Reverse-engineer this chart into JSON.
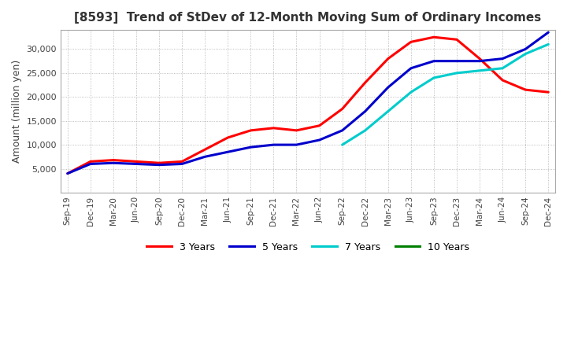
{
  "title": "[8593]  Trend of StDev of 12-Month Moving Sum of Ordinary Incomes",
  "ylabel": "Amount (million yen)",
  "ylim": [
    0,
    34000
  ],
  "yticks": [
    5000,
    10000,
    15000,
    20000,
    25000,
    30000
  ],
  "background_color": "#ffffff",
  "grid_color": "#aaaaaa",
  "x_labels": [
    "Sep-19",
    "Dec-19",
    "Mar-20",
    "Jun-20",
    "Sep-20",
    "Dec-20",
    "Mar-21",
    "Jun-21",
    "Sep-21",
    "Dec-21",
    "Mar-22",
    "Jun-22",
    "Sep-22",
    "Dec-22",
    "Mar-23",
    "Jun-23",
    "Sep-23",
    "Dec-23",
    "Mar-24",
    "Jun-24",
    "Sep-24",
    "Dec-24"
  ],
  "series": {
    "3 Years": {
      "color": "#ff0000",
      "values": [
        4000,
        6500,
        6800,
        6500,
        6200,
        6500,
        9000,
        11500,
        13000,
        13500,
        13000,
        14000,
        17500,
        23000,
        28000,
        31500,
        32500,
        32000,
        28000,
        23500,
        21500,
        21000
      ]
    },
    "5 Years": {
      "color": "#0000cc",
      "values": [
        4000,
        6000,
        6200,
        6000,
        5800,
        6000,
        7500,
        8500,
        9500,
        10000,
        10000,
        11000,
        13000,
        17000,
        22000,
        26000,
        27500,
        27500,
        27500,
        28000,
        30000,
        33500
      ]
    },
    "7 Years": {
      "color": "#00cccc",
      "values": [
        null,
        null,
        null,
        null,
        null,
        null,
        null,
        null,
        null,
        null,
        null,
        null,
        10000,
        13000,
        17000,
        21000,
        24000,
        25000,
        25500,
        26000,
        29000,
        31000
      ]
    },
    "10 Years": {
      "color": "#008000",
      "values": [
        null,
        null,
        null,
        null,
        null,
        null,
        null,
        null,
        null,
        null,
        null,
        null,
        null,
        null,
        null,
        null,
        null,
        null,
        null,
        null,
        null,
        null
      ]
    }
  },
  "legend_labels": [
    "3 Years",
    "5 Years",
    "7 Years",
    "10 Years"
  ],
  "legend_colors": [
    "#ff0000",
    "#0000cc",
    "#00cccc",
    "#008000"
  ]
}
